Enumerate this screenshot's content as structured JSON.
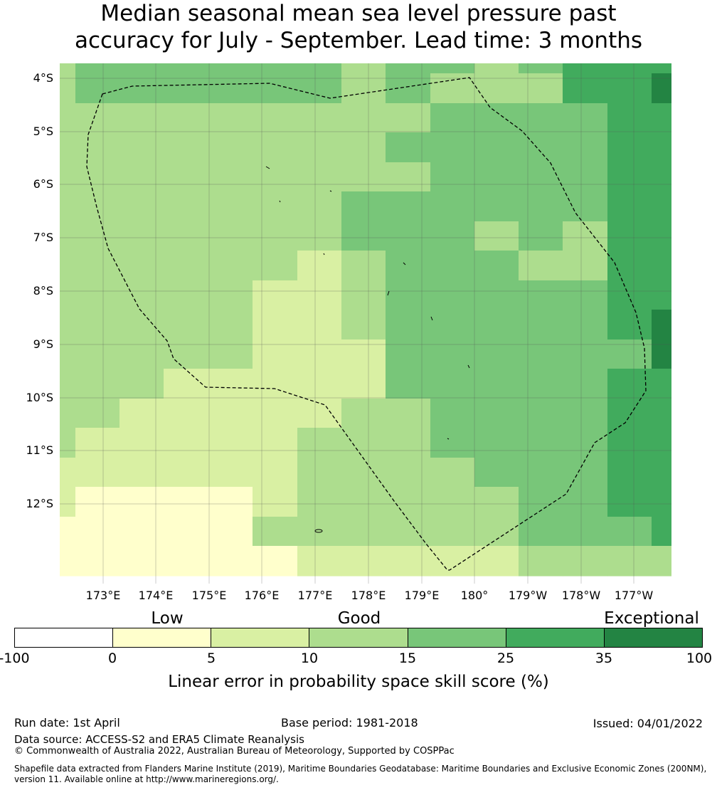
{
  "title": {
    "line1": "Median seasonal mean sea level pressure past",
    "line2": "accuracy for July - September. Lead time: 3 months"
  },
  "map": {
    "lat_labels": [
      "4°S",
      "5°S",
      "6°S",
      "7°S",
      "8°S",
      "9°S",
      "10°S",
      "11°S",
      "12°S"
    ],
    "lon_labels": [
      "173°E",
      "174°E",
      "175°E",
      "176°E",
      "177°E",
      "178°E",
      "179°E",
      "180°",
      "179°W",
      "178°W",
      "177°W"
    ],
    "icon": "dashed-eez-boundary"
  },
  "legend": {
    "categories": [
      "Low",
      "Good",
      "Exceptional"
    ],
    "ticks": [
      "-100",
      "0",
      "5",
      "10",
      "15",
      "25",
      "35",
      "100"
    ],
    "colors": [
      "#ffffff",
      "#ffffcc",
      "#d9f0a3",
      "#addd8e",
      "#78c679",
      "#41ab5d",
      "#238443"
    ],
    "title": "Linear error in probability space skill score (%)"
  },
  "footer": {
    "run_date": "Run date: 1st April",
    "base_period": "Base period: 1981-2018",
    "issued": "Issued: 04/01/2022",
    "data_source": "Data source: ACCESS-S2 and ERA5 Climate Reanalysis",
    "copyright": "© Commonwealth of Australia 2022, Australian Bureau of Meteorology, Supported by COSPPac",
    "shapefile_line1": "Shapefile data extracted from Flanders Marine Institute (2019), Maritime Boundaries Geodatabase: Maritime Boundaries and Exclusive Economic Zones (200NM),",
    "shapefile_line2": "version 11. Available online at http://www.marineregions.org/."
  }
}
